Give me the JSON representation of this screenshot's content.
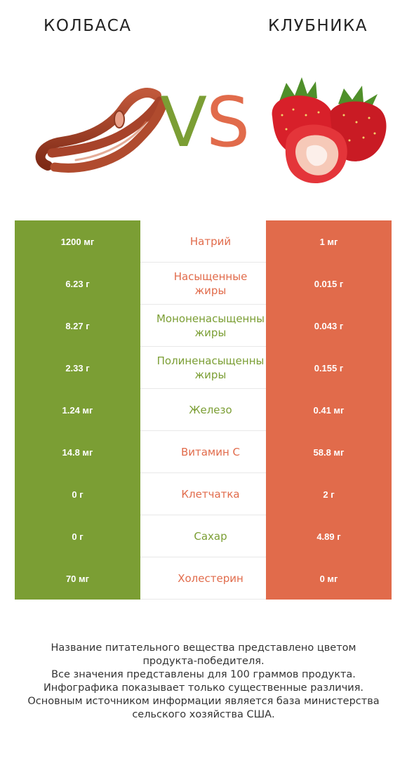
{
  "header": {
    "left_title": "КОЛБАСА",
    "right_title": "КЛУБНИКА",
    "vs_v": "V",
    "vs_s": "S"
  },
  "colors": {
    "left_winner": "#7b9e34",
    "right_winner": "#e16b4b"
  },
  "rows": [
    {
      "left": "1200 мг",
      "label": [
        "Натрий"
      ],
      "right": "1 мг",
      "winner": "right"
    },
    {
      "left": "6.23 г",
      "label": [
        "Насыщенные",
        "жиры"
      ],
      "right": "0.015 г",
      "winner": "right"
    },
    {
      "left": "8.27 г",
      "label": [
        "Мононенасыщенны",
        "жиры"
      ],
      "right": "0.043 г",
      "winner": "left"
    },
    {
      "left": "2.33 г",
      "label": [
        "Полиненасыщенны",
        "жиры"
      ],
      "right": "0.155 г",
      "winner": "left"
    },
    {
      "left": "1.24 мг",
      "label": [
        "Железо"
      ],
      "right": "0.41 мг",
      "winner": "left"
    },
    {
      "left": "14.8 мг",
      "label": [
        "Витамин C"
      ],
      "right": "58.8 мг",
      "winner": "right"
    },
    {
      "left": "0 г",
      "label": [
        "Клетчатка"
      ],
      "right": "2 г",
      "winner": "right"
    },
    {
      "left": "0 г",
      "label": [
        "Сахар"
      ],
      "right": "4.89 г",
      "winner": "left"
    },
    {
      "left": "70 мг",
      "label": [
        "Холестерин"
      ],
      "right": "0 мг",
      "winner": "right"
    }
  ],
  "footnote": [
    "Название питательного вещества представлено цветом",
    "продукта-победителя.",
    "Все значения представлены для 100 граммов продукта.",
    "Инфографика показывает только существенные различия.",
    "Основным источником информации является база министерства",
    "сельского хозяйства США."
  ]
}
